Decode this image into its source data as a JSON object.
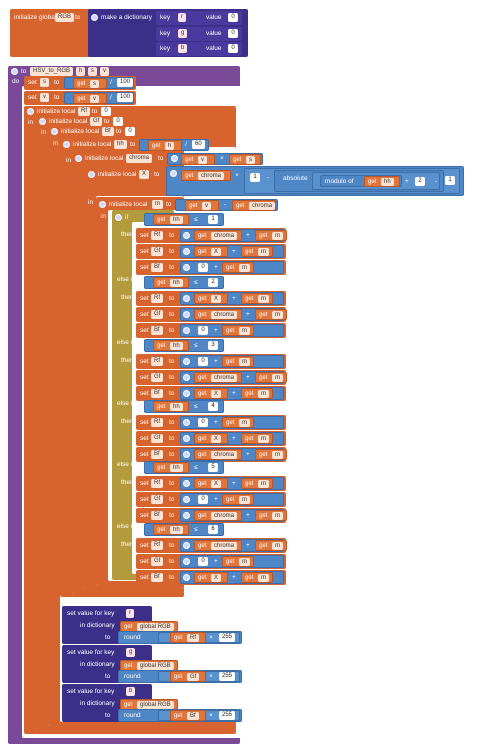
{
  "global_block": {
    "init_label": "initialize global",
    "var_name": "RGB",
    "to_label": "to",
    "dict_label": "make a dictionary",
    "pairs": [
      {
        "key_label": "key",
        "key": "r",
        "value_label": "value",
        "value": "0"
      },
      {
        "key_label": "key",
        "key": "g",
        "value_label": "value",
        "value": "0"
      },
      {
        "key_label": "key",
        "key": "b",
        "value_label": "value",
        "value": "0"
      }
    ]
  },
  "proc": {
    "to_label": "to",
    "name": "HSV_to_RGB",
    "params": [
      "h",
      "s",
      "v"
    ],
    "do_label": "do"
  },
  "labels": {
    "set": "set",
    "to": "to",
    "get": "get",
    "in": "in",
    "init_local": "initialize local",
    "if": "if",
    "then": "then",
    "else_if": "else if",
    "absolute": "absolute",
    "modulo_of": "modulo of",
    "set_value_for_key": "set value for key",
    "in_dictionary": "in dictionary",
    "round": "round",
    "global_rgb": "global RGB"
  },
  "ops": {
    "div": "/",
    "mul": "×",
    "minus": "-",
    "plus": "+",
    "le": "≤"
  },
  "values": {
    "s": "s",
    "v": "v",
    "h": "h",
    "hh": "hh",
    "Rf": "Rf",
    "Gf": "Gf",
    "Bf": "Bf",
    "chroma": "chroma",
    "X": "X",
    "m": "m",
    "n0": "0",
    "n1": "1",
    "n2": "2",
    "n3": "3",
    "n4": "4",
    "n5": "5",
    "n6": "6",
    "n60": "60",
    "n100": "100",
    "n255": "255",
    "kr": "r",
    "kg": "g",
    "kb": "b"
  }
}
